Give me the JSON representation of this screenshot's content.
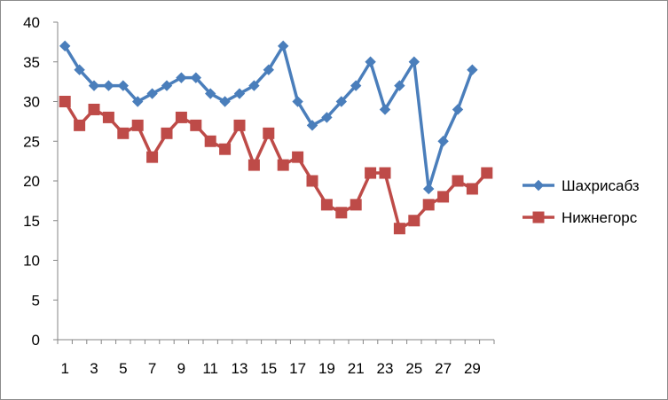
{
  "chart_data": {
    "type": "line",
    "x": [
      1,
      2,
      3,
      4,
      5,
      6,
      7,
      8,
      9,
      10,
      11,
      12,
      13,
      14,
      15,
      16,
      17,
      18,
      19,
      20,
      21,
      22,
      23,
      24,
      25,
      26,
      27,
      28,
      29,
      30
    ],
    "x_tick_labels": [
      "1",
      "3",
      "5",
      "7",
      "9",
      "11",
      "13",
      "15",
      "17",
      "19",
      "21",
      "23",
      "25",
      "27",
      "29"
    ],
    "ylim": [
      0,
      40
    ],
    "y_ticks": [
      0,
      5,
      10,
      15,
      20,
      25,
      30,
      35,
      40
    ],
    "grid": false,
    "legend_position": "right",
    "series": [
      {
        "name": "Шахрисабз",
        "color": "#4a7ebb",
        "marker": "diamond",
        "values": [
          37,
          34,
          32,
          32,
          32,
          30,
          31,
          32,
          33,
          33,
          31,
          30,
          31,
          32,
          34,
          37,
          30,
          27,
          28,
          30,
          32,
          35,
          29,
          32,
          35,
          19,
          25,
          29,
          34,
          null
        ]
      },
      {
        "name": "Нижнегорс",
        "color": "#be4b48",
        "marker": "square",
        "values": [
          30,
          27,
          29,
          28,
          26,
          27,
          23,
          26,
          28,
          27,
          25,
          24,
          27,
          22,
          26,
          22,
          23,
          20,
          17,
          16,
          17,
          21,
          21,
          14,
          15,
          17,
          18,
          20,
          19,
          21
        ]
      }
    ],
    "title": "",
    "xlabel": "",
    "ylabel": ""
  }
}
